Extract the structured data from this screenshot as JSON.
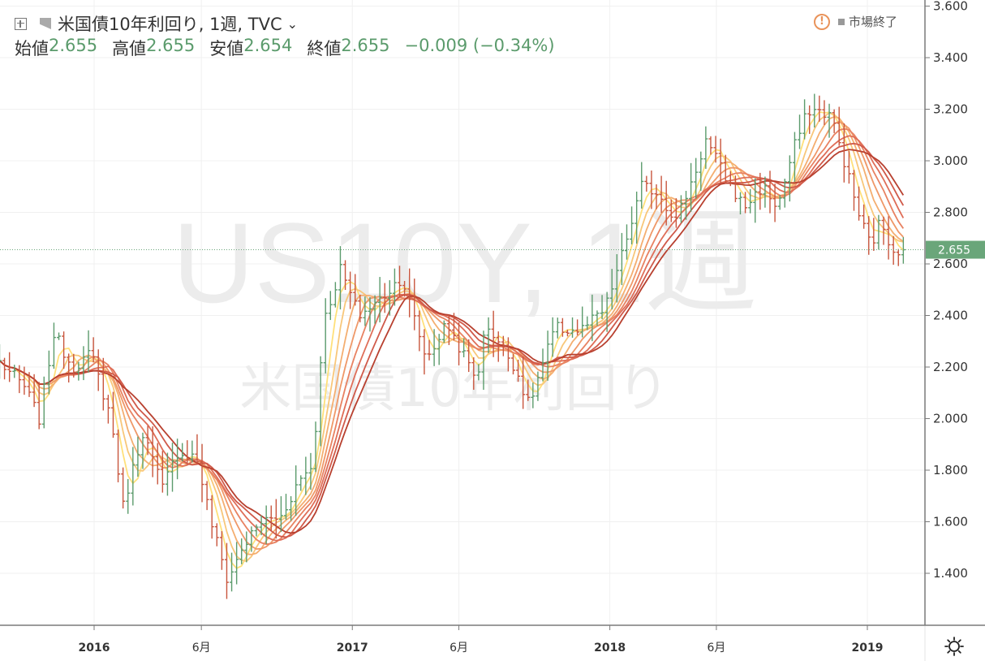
{
  "header": {
    "symbol_title": "米国債10年利回り, 1週, TVC",
    "ohlc": [
      {
        "label": "始値",
        "value": "2.655"
      },
      {
        "label": "高値",
        "value": "2.655"
      },
      {
        "label": "安値",
        "value": "2.654"
      },
      {
        "label": "終値",
        "value": "2.655"
      }
    ],
    "change": "−0.009 (−0.34%)",
    "status": "市場終了"
  },
  "watermark": {
    "symbol": "US10Y, 1週",
    "name": "米国債10年利回り"
  },
  "colors": {
    "up": "#5b9b6c",
    "down": "#c8553d",
    "price_label_bg": "#6aa67a",
    "ribbon": [
      "#ffe07a",
      "#f8c77a",
      "#f4ae70",
      "#ef9868",
      "#e88262",
      "#df6e58",
      "#d05a4a",
      "#b8402f"
    ]
  },
  "chart_data": {
    "type": "ohlc",
    "title": "米国債10年利回り, 1週, TVC",
    "interval": "1週",
    "ylim": [
      1.25,
      3.62
    ],
    "y_ticks": [
      "1.400",
      "1.600",
      "1.800",
      "2.000",
      "2.200",
      "2.400",
      "2.600",
      "2.800",
      "3.000",
      "3.200",
      "3.400",
      "3.600"
    ],
    "x_ticks": [
      {
        "label": "2016",
        "date": "2016-01-01"
      },
      {
        "label": "6月",
        "date": "2016-06-01"
      },
      {
        "label": "2017",
        "date": "2017-01-01"
      },
      {
        "label": "6月",
        "date": "2017-06-01"
      },
      {
        "label": "2018",
        "date": "2018-01-01"
      },
      {
        "label": "6月",
        "date": "2018-06-01"
      },
      {
        "label": "2019",
        "date": "2019-01-01"
      }
    ],
    "last_price": "2.655",
    "close_path": [
      [
        "2015-08-20",
        2.22
      ],
      [
        "2015-09-25",
        2.12
      ],
      [
        "2015-10-15",
        2.0
      ],
      [
        "2015-11-05",
        2.33
      ],
      [
        "2015-12-01",
        2.2
      ],
      [
        "2015-12-28",
        2.25
      ],
      [
        "2016-01-25",
        2.0
      ],
      [
        "2016-02-11",
        1.66
      ],
      [
        "2016-03-10",
        1.95
      ],
      [
        "2016-04-07",
        1.73
      ],
      [
        "2016-04-28",
        1.87
      ],
      [
        "2016-05-25",
        1.85
      ],
      [
        "2016-06-15",
        1.6
      ],
      [
        "2016-07-08",
        1.37
      ],
      [
        "2016-07-29",
        1.5
      ],
      [
        "2016-08-25",
        1.6
      ],
      [
        "2016-09-22",
        1.62
      ],
      [
        "2016-10-15",
        1.75
      ],
      [
        "2016-11-07",
        1.83
      ],
      [
        "2016-11-20",
        2.36
      ],
      [
        "2016-12-15",
        2.58
      ],
      [
        "2017-01-10",
        2.4
      ],
      [
        "2017-02-05",
        2.45
      ],
      [
        "2017-03-12",
        2.55
      ],
      [
        "2017-04-16",
        2.23
      ],
      [
        "2017-05-15",
        2.37
      ],
      [
        "2017-06-26",
        2.15
      ],
      [
        "2017-07-10",
        2.37
      ],
      [
        "2017-08-20",
        2.2
      ],
      [
        "2017-09-08",
        2.05
      ],
      [
        "2017-10-15",
        2.35
      ],
      [
        "2017-11-20",
        2.34
      ],
      [
        "2017-12-25",
        2.42
      ],
      [
        "2018-01-20",
        2.65
      ],
      [
        "2018-02-15",
        2.9
      ],
      [
        "2018-03-10",
        2.88
      ],
      [
        "2018-04-05",
        2.77
      ],
      [
        "2018-05-01",
        2.95
      ],
      [
        "2018-05-17",
        3.08
      ],
      [
        "2018-06-15",
        2.93
      ],
      [
        "2018-07-10",
        2.82
      ],
      [
        "2018-08-05",
        2.9
      ],
      [
        "2018-08-27",
        2.82
      ],
      [
        "2018-09-20",
        3.06
      ],
      [
        "2018-10-10",
        3.2
      ],
      [
        "2018-11-10",
        3.18
      ],
      [
        "2018-11-30",
        2.99
      ],
      [
        "2018-12-20",
        2.79
      ],
      [
        "2019-01-06",
        2.67
      ],
      [
        "2019-01-20",
        2.77
      ],
      [
        "2019-02-05",
        2.66
      ],
      [
        "2019-02-22",
        2.655
      ]
    ]
  }
}
